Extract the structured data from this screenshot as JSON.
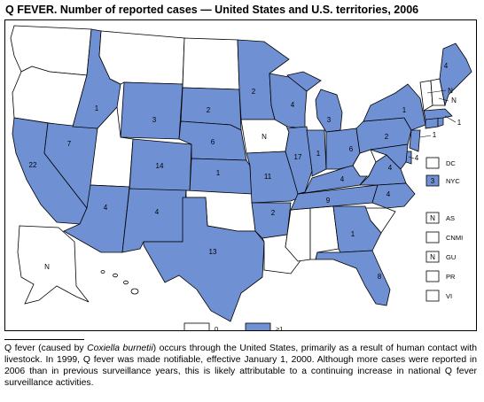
{
  "title": "Q FEVER. Number of reported cases — United States and U.S. territories, 2006",
  "colors": {
    "reported": "#6f91d4",
    "none": "#ffffff",
    "outline": "#000000"
  },
  "map": {
    "state_counts": [
      {
        "state": "ID",
        "value": "1"
      },
      {
        "state": "MT",
        "value": "3"
      },
      {
        "state": "SD",
        "value": "2"
      },
      {
        "state": "MN",
        "value": "2"
      },
      {
        "state": "WI",
        "value": "4"
      },
      {
        "state": "ME",
        "value": "4"
      },
      {
        "state": "NV",
        "value": "7"
      },
      {
        "state": "CA",
        "value": "22"
      },
      {
        "state": "CO",
        "value": "14"
      },
      {
        "state": "NE",
        "value": "6"
      },
      {
        "state": "KS",
        "value": "1"
      },
      {
        "state": "AZ",
        "value": "4"
      },
      {
        "state": "NM",
        "value": "4"
      },
      {
        "state": "TX",
        "value": "13"
      },
      {
        "state": "MO",
        "value": "11"
      },
      {
        "state": "AR",
        "value": "2"
      },
      {
        "state": "IL",
        "value": "17"
      },
      {
        "state": "IN",
        "value": "1"
      },
      {
        "state": "MI",
        "value": "3"
      },
      {
        "state": "OH",
        "value": "6"
      },
      {
        "state": "KY",
        "value": "4"
      },
      {
        "state": "TN",
        "value": "9"
      },
      {
        "state": "GA",
        "value": "1"
      },
      {
        "state": "FL",
        "value": "8"
      },
      {
        "state": "NC",
        "value": "4"
      },
      {
        "state": "VA",
        "value": "4"
      },
      {
        "state": "PA",
        "value": "2"
      },
      {
        "state": "NY",
        "value": "1"
      },
      {
        "state": "NJ",
        "value": "1"
      },
      {
        "state": "MA",
        "value": "1"
      },
      {
        "state": "MD",
        "value": "4"
      }
    ],
    "n_labels": [
      {
        "state": "IA",
        "value": "N"
      },
      {
        "state": "AK",
        "value": "N"
      },
      {
        "state": "VT",
        "value": "N"
      },
      {
        "state": "NH",
        "value": "N"
      }
    ],
    "side_boxes": [
      {
        "code": "DC",
        "value": ""
      },
      {
        "code": "NYC",
        "value": "3"
      }
    ],
    "territories": [
      {
        "code": "AS",
        "value": "N"
      },
      {
        "code": "CNMI",
        "value": ""
      },
      {
        "code": "GU",
        "value": "N"
      },
      {
        "code": "PR",
        "value": ""
      },
      {
        "code": "VI",
        "value": ""
      }
    ],
    "legend": [
      {
        "label": "0",
        "color": "#ffffff"
      },
      {
        "label": "≥1",
        "color": "#6f91d4"
      }
    ]
  },
  "footnote": {
    "part1": "Q fever (caused by ",
    "italic": "Coxiella burnetii",
    "part2": ") occurs through the United States, primarily as a result of human contact with livestock. In 1999, Q fever was made notifiable, effective January 1, 2000. Although more cases were reported in 2006 than in previous surveillance years, this is likely attributable to a continuing increase in national Q fever surveillance activities."
  }
}
